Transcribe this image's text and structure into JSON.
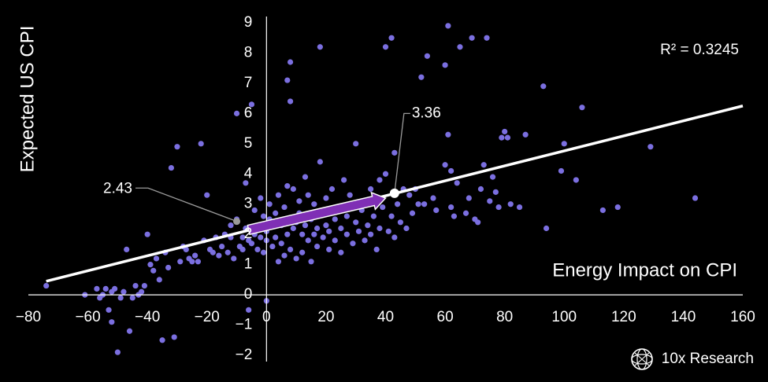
{
  "chart_data": {
    "type": "scatter",
    "xlabel": "Energy Impact on CPI",
    "ylabel": "Expected US CPI",
    "xlim": [
      -80,
      160
    ],
    "ylim": [
      -2,
      9
    ],
    "x_ticks": [
      -80,
      -60,
      -40,
      -20,
      0,
      20,
      40,
      60,
      80,
      100,
      120,
      140,
      160
    ],
    "y_ticks": [
      -2,
      -1,
      0,
      1,
      2,
      3,
      4,
      5,
      6,
      7,
      8,
      9
    ],
    "grid": false,
    "point_color": "#7b6fe0",
    "trendline": {
      "color": "#ffffff",
      "x": [
        -74,
        160
      ],
      "y": [
        0.45,
        6.25
      ]
    },
    "r_squared_label": "R² = 0.3245",
    "arrow": {
      "color": "#7f2fb5",
      "from": [
        -6,
        2.15
      ],
      "to": [
        40,
        3.2
      ]
    },
    "callouts": [
      {
        "label": "2.43",
        "x": -10,
        "y": 2.43
      },
      {
        "label": "3.36",
        "x": 43,
        "y": 3.36
      }
    ],
    "points": [
      [
        -74,
        0.3
      ],
      [
        -61,
        0
      ],
      [
        -57,
        0.2
      ],
      [
        -56,
        -0.1
      ],
      [
        -55,
        0
      ],
      [
        -54,
        0.2
      ],
      [
        -53,
        -0.5
      ],
      [
        -52,
        0.1
      ],
      [
        -52,
        -0.9
      ],
      [
        -51,
        0.2
      ],
      [
        -50,
        -1.9
      ],
      [
        -49,
        -0.1
      ],
      [
        -48,
        0.1
      ],
      [
        -47,
        1.5
      ],
      [
        -46,
        -1.2
      ],
      [
        -45,
        -0.1
      ],
      [
        -44,
        0.3
      ],
      [
        -43,
        0
      ],
      [
        -42,
        0.1
      ],
      [
        -41,
        0.3
      ],
      [
        -40,
        2
      ],
      [
        -39,
        1
      ],
      [
        -38,
        0.8
      ],
      [
        -37,
        1.2
      ],
      [
        -36,
        0.5
      ],
      [
        -35,
        -1.5
      ],
      [
        -34,
        1.4
      ],
      [
        -33,
        0.9
      ],
      [
        -32,
        4.2
      ],
      [
        -31,
        -1.4
      ],
      [
        -30,
        4.9
      ],
      [
        -29,
        1.1
      ],
      [
        -28,
        1.6
      ],
      [
        -27,
        1.5
      ],
      [
        -26,
        1.2
      ],
      [
        -25,
        1.1
      ],
      [
        -24,
        1.3
      ],
      [
        -23,
        1.1
      ],
      [
        -22,
        5
      ],
      [
        -21,
        1.8
      ],
      [
        -20,
        3.3
      ],
      [
        -19,
        1.5
      ],
      [
        -18,
        1.4
      ],
      [
        -17,
        1.9
      ],
      [
        -16,
        1.3
      ],
      [
        -15,
        1.6
      ],
      [
        -14,
        2
      ],
      [
        -13,
        1.4
      ],
      [
        -12,
        2.3
      ],
      [
        -12,
        1.9
      ],
      [
        -11,
        1.2
      ],
      [
        -10,
        2.5
      ],
      [
        -10,
        6
      ],
      [
        -9,
        1.6
      ],
      [
        -8,
        1.9
      ],
      [
        -8,
        1.5
      ],
      [
        -7,
        2.2
      ],
      [
        -7,
        3.7
      ],
      [
        -6,
        1.8
      ],
      [
        -6,
        -0.5
      ],
      [
        -5,
        6.3
      ],
      [
        -5,
        1.7
      ],
      [
        -4,
        2.8
      ],
      [
        -4,
        2
      ],
      [
        -3,
        2.2
      ],
      [
        -3,
        1.5
      ],
      [
        -2,
        3.2
      ],
      [
        -2,
        1.9
      ],
      [
        -1,
        2.6
      ],
      [
        -1,
        1.4
      ],
      [
        0,
        2.1
      ],
      [
        0,
        1.8
      ],
      [
        0,
        -0.2
      ],
      [
        1,
        3
      ],
      [
        1,
        2.5
      ],
      [
        2,
        2.3
      ],
      [
        2,
        1.6
      ],
      [
        3,
        2.7
      ],
      [
        3,
        1.9
      ],
      [
        4,
        3.3
      ],
      [
        4,
        1.1
      ],
      [
        5,
        2.3
      ],
      [
        5,
        1.7
      ],
      [
        6,
        2.9
      ],
      [
        6,
        1.3
      ],
      [
        7,
        7.1
      ],
      [
        7,
        3.6
      ],
      [
        7,
        2
      ],
      [
        8,
        7.7
      ],
      [
        8,
        6.4
      ],
      [
        8,
        1.5
      ],
      [
        9,
        3.5
      ],
      [
        9,
        2.2
      ],
      [
        10,
        2.4
      ],
      [
        10,
        1.2
      ],
      [
        11,
        3.1
      ],
      [
        11,
        2.7
      ],
      [
        12,
        2
      ],
      [
        12,
        1.4
      ],
      [
        13,
        3.9
      ],
      [
        13,
        2.3
      ],
      [
        14,
        3.3
      ],
      [
        14,
        1.8
      ],
      [
        15,
        2.5
      ],
      [
        15,
        1.1
      ],
      [
        16,
        3
      ],
      [
        16,
        2
      ],
      [
        17,
        2.2
      ],
      [
        17,
        1.6
      ],
      [
        18,
        4.4
      ],
      [
        18,
        8.2
      ],
      [
        19,
        2.8
      ],
      [
        19,
        1.9
      ],
      [
        20,
        3.2
      ],
      [
        20,
        2.3
      ],
      [
        21,
        2.1
      ],
      [
        21,
        1.5
      ],
      [
        22,
        3.5
      ],
      [
        23,
        2.5
      ],
      [
        23,
        1.8
      ],
      [
        24,
        2.9
      ],
      [
        25,
        2.2
      ],
      [
        25,
        1.4
      ],
      [
        26,
        3.8
      ],
      [
        27,
        2.6
      ],
      [
        27,
        2
      ],
      [
        28,
        3.3
      ],
      [
        29,
        1.7
      ],
      [
        30,
        5
      ],
      [
        30,
        2.4
      ],
      [
        31,
        2.1
      ],
      [
        32,
        2.8
      ],
      [
        33,
        1.8
      ],
      [
        34,
        2.3
      ],
      [
        35,
        3.5
      ],
      [
        35,
        2
      ],
      [
        36,
        2.6
      ],
      [
        37,
        1.5
      ],
      [
        38,
        3.8
      ],
      [
        38,
        2.2
      ],
      [
        39,
        2.9
      ],
      [
        40,
        8.2
      ],
      [
        40,
        4
      ],
      [
        41,
        2.1
      ],
      [
        42,
        8.5
      ],
      [
        42,
        2.6
      ],
      [
        43,
        4.7
      ],
      [
        43,
        1.9
      ],
      [
        44,
        3
      ],
      [
        45,
        2.4
      ],
      [
        46,
        3.5
      ],
      [
        47,
        2.2
      ],
      [
        48,
        3.3
      ],
      [
        49,
        2.7
      ],
      [
        50,
        3.5
      ],
      [
        51,
        3
      ],
      [
        52,
        7.2
      ],
      [
        53,
        3
      ],
      [
        54,
        7.9
      ],
      [
        56,
        3.2
      ],
      [
        57,
        2.8
      ],
      [
        60,
        7.6
      ],
      [
        61,
        8.9
      ],
      [
        61,
        5.3
      ],
      [
        60,
        4.3
      ],
      [
        62,
        4.1
      ],
      [
        62,
        2.9
      ],
      [
        63,
        2.6
      ],
      [
        64,
        3.7
      ],
      [
        65,
        8.2
      ],
      [
        67,
        2.7
      ],
      [
        68,
        3.2
      ],
      [
        69,
        8.5
      ],
      [
        70,
        2.5
      ],
      [
        71,
        2.4
      ],
      [
        72,
        3.5
      ],
      [
        73,
        4.3
      ],
      [
        74,
        8.5
      ],
      [
        75,
        3.1
      ],
      [
        76,
        3.9
      ],
      [
        77,
        3.4
      ],
      [
        78,
        2.9
      ],
      [
        79,
        5.2
      ],
      [
        80,
        5.4
      ],
      [
        81,
        5.2
      ],
      [
        82,
        3
      ],
      [
        85,
        2.9
      ],
      [
        87,
        5.3
      ],
      [
        93,
        6.9
      ],
      [
        94,
        2.2
      ],
      [
        99,
        4.1
      ],
      [
        100,
        5
      ],
      [
        104,
        3.8
      ],
      [
        106,
        6.2
      ],
      [
        113,
        2.8
      ],
      [
        118,
        2.9
      ],
      [
        129,
        4.9
      ],
      [
        144,
        3.2
      ]
    ]
  },
  "brand": {
    "name": "10x Research",
    "logo_icon": "globe-mesh-icon"
  }
}
